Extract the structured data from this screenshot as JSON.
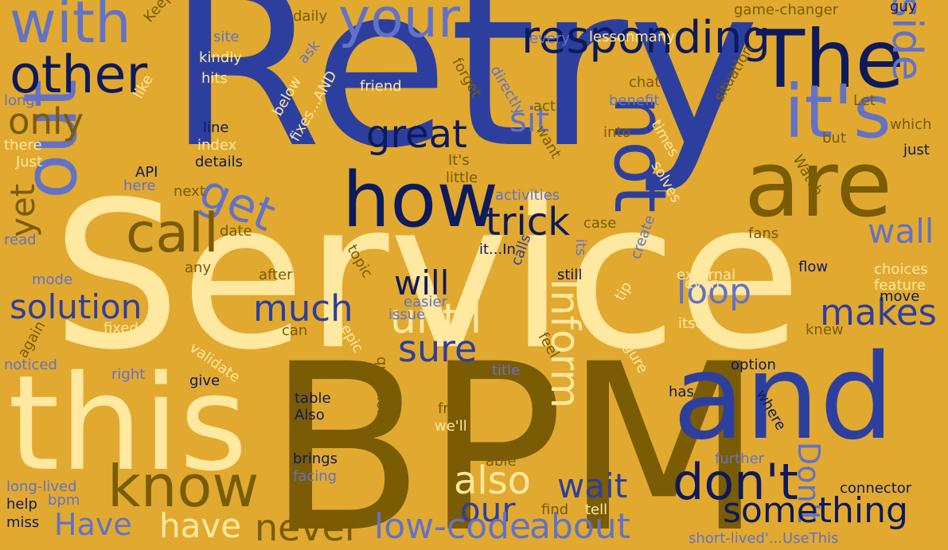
{
  "palette": {
    "background": "#E1A92F",
    "navy": "#0D1A5C",
    "blue": "#2D3F9E",
    "periwinkle": "#6272C8",
    "cream": "#FFE8A0",
    "olive": "#7A5C05"
  },
  "words": [
    {
      "text": "Retry",
      "color": "blue"
    },
    {
      "text": "Service",
      "color": "cream"
    },
    {
      "text": "BPM",
      "color": "olive"
    },
    {
      "text": "this",
      "color": "cream"
    },
    {
      "text": "and",
      "color": "blue"
    },
    {
      "text": "are",
      "color": "olive"
    },
    {
      "text": "The",
      "color": "navy"
    },
    {
      "text": "out",
      "color": "periwinkle"
    },
    {
      "text": "how",
      "color": "navy"
    },
    {
      "text": "it's",
      "color": "periwinkle"
    },
    {
      "text": "not",
      "color": "blue"
    },
    {
      "text": "other",
      "color": "navy"
    },
    {
      "text": "with",
      "color": "periwinkle"
    },
    {
      "text": "your",
      "color": "periwinkle"
    },
    {
      "text": "responding",
      "color": "navy"
    },
    {
      "text": "side",
      "color": "periwinkle"
    },
    {
      "text": "get",
      "color": "periwinkle"
    },
    {
      "text": "call",
      "color": "olive"
    },
    {
      "text": "know",
      "color": "olive"
    },
    {
      "text": "don't",
      "color": "navy"
    },
    {
      "text": "great",
      "color": "navy"
    },
    {
      "text": "only",
      "color": "olive"
    },
    {
      "text": "trick",
      "color": "navy"
    },
    {
      "text": "sit",
      "color": "periwinkle"
    },
    {
      "text": "wall",
      "color": "periwinkle"
    },
    {
      "text": "makes",
      "color": "blue"
    },
    {
      "text": "loop",
      "color": "periwinkle"
    },
    {
      "text": "Inform",
      "color": "cream"
    },
    {
      "text": "until",
      "color": "cream"
    },
    {
      "text": "will",
      "color": "navy"
    },
    {
      "text": "much",
      "color": "blue"
    },
    {
      "text": "sure",
      "color": "blue"
    },
    {
      "text": "solution",
      "color": "blue"
    },
    {
      "text": "yet",
      "color": "olive"
    },
    {
      "text": "also",
      "color": "cream"
    },
    {
      "text": "our",
      "color": "blue"
    },
    {
      "text": "wait",
      "color": "blue"
    },
    {
      "text": "Don't",
      "color": "periwinkle"
    },
    {
      "text": "something",
      "color": "navy"
    },
    {
      "text": "never",
      "color": "olive"
    },
    {
      "text": "have",
      "color": "cream"
    },
    {
      "text": "Have",
      "color": "periwinkle"
    },
    {
      "text": "low-code",
      "color": "periwinkle"
    },
    {
      "text": "about",
      "color": "periwinkle"
    },
    {
      "text": "Keep",
      "color": "olive"
    },
    {
      "text": "daily",
      "color": "olive"
    },
    {
      "text": "site",
      "color": "periwinkle"
    },
    {
      "text": "kindly",
      "color": "cream"
    },
    {
      "text": "hits",
      "color": "cream"
    },
    {
      "text": "ask",
      "color": "periwinkle"
    },
    {
      "text": "fixes...AND",
      "color": "cream"
    },
    {
      "text": "below",
      "color": "cream"
    },
    {
      "text": "friend",
      "color": "cream"
    },
    {
      "text": "every",
      "color": "periwinkle"
    },
    {
      "text": "lessonmany",
      "color": "cream"
    },
    {
      "text": "game-changer",
      "color": "olive"
    },
    {
      "text": "guy",
      "color": "navy"
    },
    {
      "text": "situation",
      "color": "olive"
    },
    {
      "text": "chat",
      "color": "olive"
    },
    {
      "text": "benefit",
      "color": "periwinkle"
    },
    {
      "text": "Let",
      "color": "olive"
    },
    {
      "text": "which",
      "color": "olive"
    },
    {
      "text": "just",
      "color": "navy"
    },
    {
      "text": "but",
      "color": "olive"
    },
    {
      "text": "into",
      "color": "olive"
    },
    {
      "text": "times",
      "color": "cream"
    },
    {
      "text": "act",
      "color": "olive"
    },
    {
      "text": "directly",
      "color": "periwinkle"
    },
    {
      "text": "forget",
      "color": "olive"
    },
    {
      "text": "It's",
      "color": "olive"
    },
    {
      "text": "want",
      "color": "olive"
    },
    {
      "text": "little",
      "color": "olive"
    },
    {
      "text": "solves",
      "color": "cream"
    },
    {
      "text": "activities",
      "color": "periwinkle"
    },
    {
      "text": "Watch",
      "color": "olive"
    },
    {
      "text": "long",
      "color": "periwinkle"
    },
    {
      "text": "like",
      "color": "cream"
    },
    {
      "text": "there",
      "color": "cream"
    },
    {
      "text": "Just",
      "color": "cream"
    },
    {
      "text": "line",
      "color": "navy"
    },
    {
      "text": "index",
      "color": "cream"
    },
    {
      "text": "details",
      "color": "navy"
    },
    {
      "text": "API",
      "color": "navy"
    },
    {
      "text": "here",
      "color": "periwinkle"
    },
    {
      "text": "next",
      "color": "olive"
    },
    {
      "text": "date",
      "color": "olive"
    },
    {
      "text": "case",
      "color": "olive"
    },
    {
      "text": "fans",
      "color": "olive"
    },
    {
      "text": "read",
      "color": "periwinkle"
    },
    {
      "text": "mode",
      "color": "periwinkle"
    },
    {
      "text": "any",
      "color": "olive"
    },
    {
      "text": "after",
      "color": "olive"
    },
    {
      "text": "topic",
      "color": "olive"
    },
    {
      "text": "it...In",
      "color": "navy"
    },
    {
      "text": "its",
      "color": "periwinkle"
    },
    {
      "text": "create",
      "color": "periwinkle"
    },
    {
      "text": "calls",
      "color": "blue"
    },
    {
      "text": "still",
      "color": "navy"
    },
    {
      "text": "external",
      "color": "cream"
    },
    {
      "text": "even",
      "color": "cream"
    },
    {
      "text": "flow",
      "color": "navy"
    },
    {
      "text": "choices",
      "color": "cream"
    },
    {
      "text": "feature",
      "color": "cream"
    },
    {
      "text": "move",
      "color": "navy"
    },
    {
      "text": "easier",
      "color": "periwinkle"
    },
    {
      "text": "issue",
      "color": "periwinkle"
    },
    {
      "text": "again",
      "color": "olive"
    },
    {
      "text": "fixed",
      "color": "cream"
    },
    {
      "text": "can",
      "color": "olive"
    },
    {
      "text": "epic",
      "color": "cream"
    },
    {
      "text": "tip",
      "color": "cream"
    },
    {
      "text": "itself",
      "color": "cream"
    },
    {
      "text": "knew",
      "color": "olive"
    },
    {
      "text": "validate",
      "color": "cream"
    },
    {
      "text": "noticed",
      "color": "periwinkle"
    },
    {
      "text": "right",
      "color": "periwinkle"
    },
    {
      "text": "give",
      "color": "navy"
    },
    {
      "text": "feel",
      "color": "olive"
    },
    {
      "text": "figure",
      "color": "cream"
    },
    {
      "text": "questions",
      "color": "olive"
    },
    {
      "text": "title",
      "color": "periwinkle"
    },
    {
      "text": "option",
      "color": "navy"
    },
    {
      "text": "has",
      "color": "navy"
    },
    {
      "text": "where",
      "color": "navy"
    },
    {
      "text": "table",
      "color": "navy"
    },
    {
      "text": "Also",
      "color": "navy"
    },
    {
      "text": "fruit",
      "color": "olive"
    },
    {
      "text": "we'll",
      "color": "cream"
    },
    {
      "text": "brings",
      "color": "navy"
    },
    {
      "text": "facing",
      "color": "periwinkle"
    },
    {
      "text": "able",
      "color": "olive"
    },
    {
      "text": "further",
      "color": "periwinkle"
    },
    {
      "text": "long-lived",
      "color": "periwinkle"
    },
    {
      "text": "bpm",
      "color": "periwinkle"
    },
    {
      "text": "help",
      "color": "navy"
    },
    {
      "text": "miss",
      "color": "navy"
    },
    {
      "text": "find",
      "color": "olive"
    },
    {
      "text": "tell",
      "color": "cream"
    },
    {
      "text": "connector",
      "color": "navy"
    },
    {
      "text": "short-lived'...UseThis",
      "color": "periwinkle"
    }
  ]
}
